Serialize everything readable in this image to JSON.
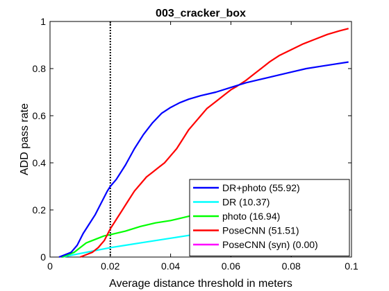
{
  "chart_data": {
    "type": "line",
    "title": "003_cracker_box",
    "xlabel": "Average distance threshold in meters",
    "ylabel": "ADD pass rate",
    "xlim": [
      0,
      0.1
    ],
    "ylim": [
      0,
      1
    ],
    "xticks": [
      "0",
      "0.02",
      "0.04",
      "0.06",
      "0.08",
      "0.1"
    ],
    "yticks": [
      "0",
      "0.2",
      "0.4",
      "0.6",
      "0.8",
      "1"
    ],
    "grid": false,
    "legend_position": "bottom-right",
    "reference_line": {
      "x": 0.02,
      "style": "dotted",
      "color": "#000000"
    },
    "series": [
      {
        "name": "DR+photo (55.92)",
        "color": "#0000ff",
        "points": [
          [
            0.003,
            0
          ],
          [
            0.005,
            0.01
          ],
          [
            0.007,
            0.02
          ],
          [
            0.009,
            0.05
          ],
          [
            0.011,
            0.1
          ],
          [
            0.013,
            0.14
          ],
          [
            0.015,
            0.18
          ],
          [
            0.017,
            0.23
          ],
          [
            0.019,
            0.28
          ],
          [
            0.02,
            0.3
          ],
          [
            0.022,
            0.33
          ],
          [
            0.025,
            0.39
          ],
          [
            0.028,
            0.46
          ],
          [
            0.031,
            0.52
          ],
          [
            0.034,
            0.57
          ],
          [
            0.037,
            0.61
          ],
          [
            0.04,
            0.635
          ],
          [
            0.043,
            0.655
          ],
          [
            0.046,
            0.67
          ],
          [
            0.05,
            0.685
          ],
          [
            0.055,
            0.7
          ],
          [
            0.06,
            0.72
          ],
          [
            0.065,
            0.74
          ],
          [
            0.07,
            0.755
          ],
          [
            0.075,
            0.77
          ],
          [
            0.08,
            0.785
          ],
          [
            0.085,
            0.8
          ],
          [
            0.09,
            0.81
          ],
          [
            0.095,
            0.82
          ],
          [
            0.099,
            0.828
          ]
        ]
      },
      {
        "name": "DR (10.37)",
        "color": "#00ffff",
        "points": [
          [
            0.004,
            0
          ],
          [
            0.008,
            0.01
          ],
          [
            0.012,
            0.02
          ],
          [
            0.016,
            0.03
          ],
          [
            0.02,
            0.04
          ],
          [
            0.025,
            0.05
          ],
          [
            0.03,
            0.06
          ],
          [
            0.035,
            0.07
          ],
          [
            0.04,
            0.08
          ],
          [
            0.045,
            0.09
          ],
          [
            0.05,
            0.1
          ],
          [
            0.055,
            0.11
          ],
          [
            0.06,
            0.115
          ],
          [
            0.065,
            0.12
          ],
          [
            0.07,
            0.125
          ],
          [
            0.075,
            0.13
          ],
          [
            0.08,
            0.135
          ],
          [
            0.085,
            0.14
          ],
          [
            0.09,
            0.145
          ],
          [
            0.095,
            0.152
          ],
          [
            0.099,
            0.158
          ]
        ]
      },
      {
        "name": "photo (16.94)",
        "color": "#00ff00",
        "points": [
          [
            0.004,
            0
          ],
          [
            0.006,
            0.01
          ],
          [
            0.008,
            0.02
          ],
          [
            0.01,
            0.04
          ],
          [
            0.012,
            0.06
          ],
          [
            0.014,
            0.07
          ],
          [
            0.016,
            0.08
          ],
          [
            0.018,
            0.09
          ],
          [
            0.02,
            0.095
          ],
          [
            0.025,
            0.11
          ],
          [
            0.03,
            0.13
          ],
          [
            0.035,
            0.145
          ],
          [
            0.04,
            0.155
          ],
          [
            0.045,
            0.17
          ],
          [
            0.05,
            0.185
          ],
          [
            0.055,
            0.2
          ],
          [
            0.06,
            0.21
          ],
          [
            0.065,
            0.22
          ],
          [
            0.07,
            0.23
          ],
          [
            0.075,
            0.24
          ],
          [
            0.08,
            0.25
          ],
          [
            0.085,
            0.255
          ],
          [
            0.09,
            0.26
          ],
          [
            0.095,
            0.265
          ],
          [
            0.099,
            0.27
          ]
        ]
      },
      {
        "name": "PoseCNN (51.51)",
        "color": "#ff0000",
        "points": [
          [
            0.01,
            0
          ],
          [
            0.012,
            0.01
          ],
          [
            0.014,
            0.02
          ],
          [
            0.016,
            0.04
          ],
          [
            0.018,
            0.07
          ],
          [
            0.02,
            0.12
          ],
          [
            0.022,
            0.16
          ],
          [
            0.024,
            0.2
          ],
          [
            0.026,
            0.24
          ],
          [
            0.028,
            0.28
          ],
          [
            0.03,
            0.31
          ],
          [
            0.032,
            0.34
          ],
          [
            0.034,
            0.36
          ],
          [
            0.036,
            0.38
          ],
          [
            0.038,
            0.4
          ],
          [
            0.04,
            0.43
          ],
          [
            0.042,
            0.46
          ],
          [
            0.044,
            0.5
          ],
          [
            0.046,
            0.54
          ],
          [
            0.048,
            0.57
          ],
          [
            0.05,
            0.6
          ],
          [
            0.052,
            0.63
          ],
          [
            0.054,
            0.65
          ],
          [
            0.056,
            0.67
          ],
          [
            0.058,
            0.69
          ],
          [
            0.06,
            0.71
          ],
          [
            0.062,
            0.725
          ],
          [
            0.065,
            0.75
          ],
          [
            0.068,
            0.78
          ],
          [
            0.07,
            0.8
          ],
          [
            0.073,
            0.83
          ],
          [
            0.076,
            0.855
          ],
          [
            0.08,
            0.88
          ],
          [
            0.084,
            0.905
          ],
          [
            0.088,
            0.925
          ],
          [
            0.092,
            0.945
          ],
          [
            0.096,
            0.96
          ],
          [
            0.099,
            0.97
          ]
        ]
      },
      {
        "name": "PoseCNN (syn) (0.00)",
        "color": "#ff00ff",
        "points": []
      }
    ]
  }
}
